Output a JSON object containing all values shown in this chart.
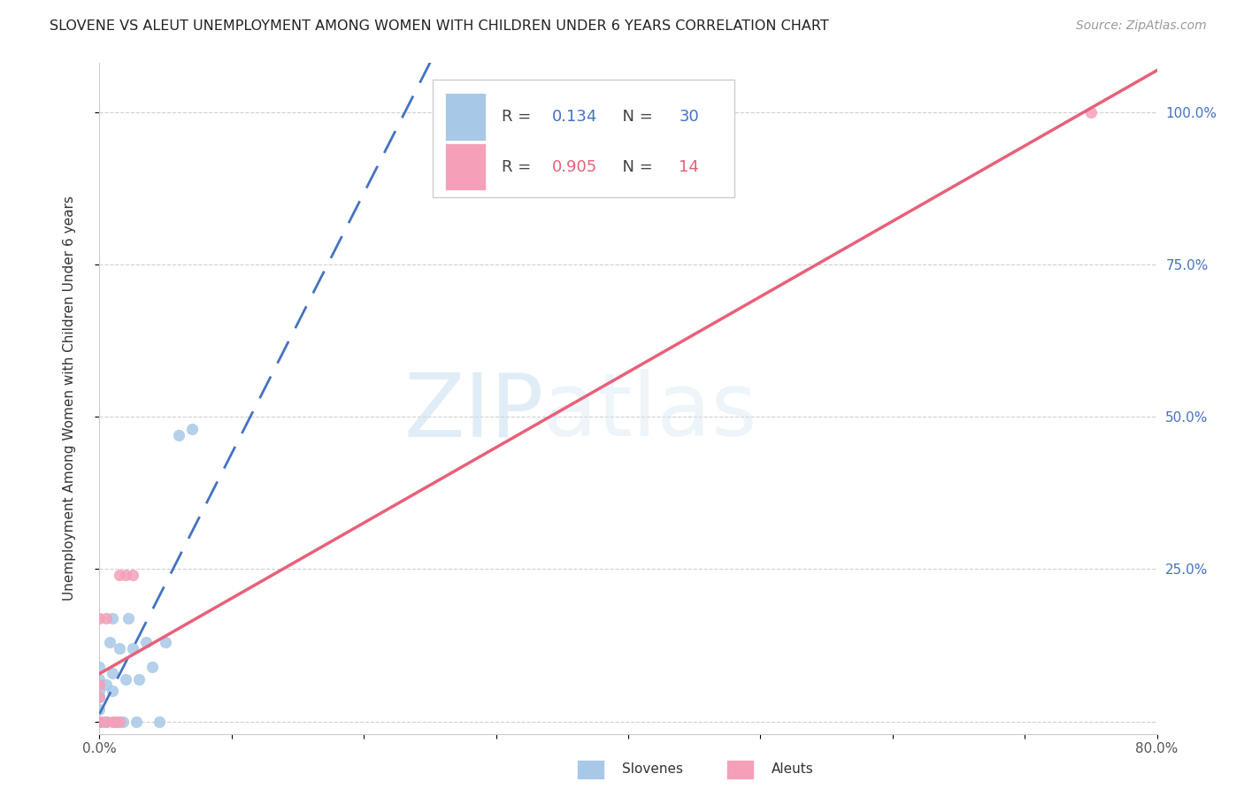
{
  "title": "SLOVENE VS ALEUT UNEMPLOYMENT AMONG WOMEN WITH CHILDREN UNDER 6 YEARS CORRELATION CHART",
  "source": "Source: ZipAtlas.com",
  "ylabel": "Unemployment Among Women with Children Under 6 years",
  "legend_slovene": "Slovenes",
  "legend_aleut": "Aleuts",
  "slovene_R": 0.134,
  "slovene_N": 30,
  "aleut_R": 0.905,
  "aleut_N": 14,
  "xmin": 0.0,
  "xmax": 0.8,
  "ymin": -0.02,
  "ymax": 1.08,
  "xticks": [
    0.0,
    0.1,
    0.2,
    0.3,
    0.4,
    0.5,
    0.6,
    0.7,
    0.8
  ],
  "yticks": [
    0.0,
    0.25,
    0.5,
    0.75,
    1.0
  ],
  "ytick_labels": [
    "",
    "25.0%",
    "50.0%",
    "75.0%",
    "100.0%"
  ],
  "xtick_labels": [
    "0.0%",
    "",
    "",
    "",
    "",
    "",
    "",
    "",
    "80.0%"
  ],
  "slovene_color": "#a8c8e8",
  "aleut_color": "#f4a0b8",
  "slovene_line_color": "#4472c4",
  "aleut_line_color": "#e8607a",
  "grid_color": "#d0d0d0",
  "watermark_zip": "ZIP",
  "watermark_atlas": "atlas",
  "slovene_x": [
    0.0,
    0.0,
    0.0,
    0.0,
    0.0,
    0.0,
    0.0,
    0.0,
    0.0,
    0.003,
    0.005,
    0.005,
    0.008,
    0.01,
    0.01,
    0.01,
    0.013,
    0.015,
    0.018,
    0.02,
    0.022,
    0.025,
    0.028,
    0.03,
    0.035,
    0.04,
    0.045,
    0.05,
    0.06,
    0.07
  ],
  "slovene_y": [
    0.0,
    0.0,
    0.0,
    0.0,
    0.02,
    0.04,
    0.05,
    0.07,
    0.09,
    0.0,
    0.0,
    0.06,
    0.13,
    0.05,
    0.08,
    0.17,
    0.0,
    0.12,
    0.0,
    0.07,
    0.17,
    0.12,
    0.0,
    0.07,
    0.13,
    0.09,
    0.0,
    0.13,
    0.47,
    0.48
  ],
  "aleut_x": [
    0.0,
    0.0,
    0.0,
    0.0,
    0.0,
    0.005,
    0.005,
    0.01,
    0.012,
    0.015,
    0.015,
    0.02,
    0.025,
    0.75
  ],
  "aleut_y": [
    0.0,
    0.0,
    0.04,
    0.06,
    0.17,
    0.0,
    0.17,
    0.0,
    0.0,
    0.0,
    0.24,
    0.24,
    0.24,
    1.0
  ],
  "background_color": "#ffffff",
  "title_fontsize": 11.5,
  "source_fontsize": 10,
  "axis_label_fontsize": 11,
  "tick_fontsize": 11,
  "legend_fontsize": 13,
  "marker_size": 80
}
